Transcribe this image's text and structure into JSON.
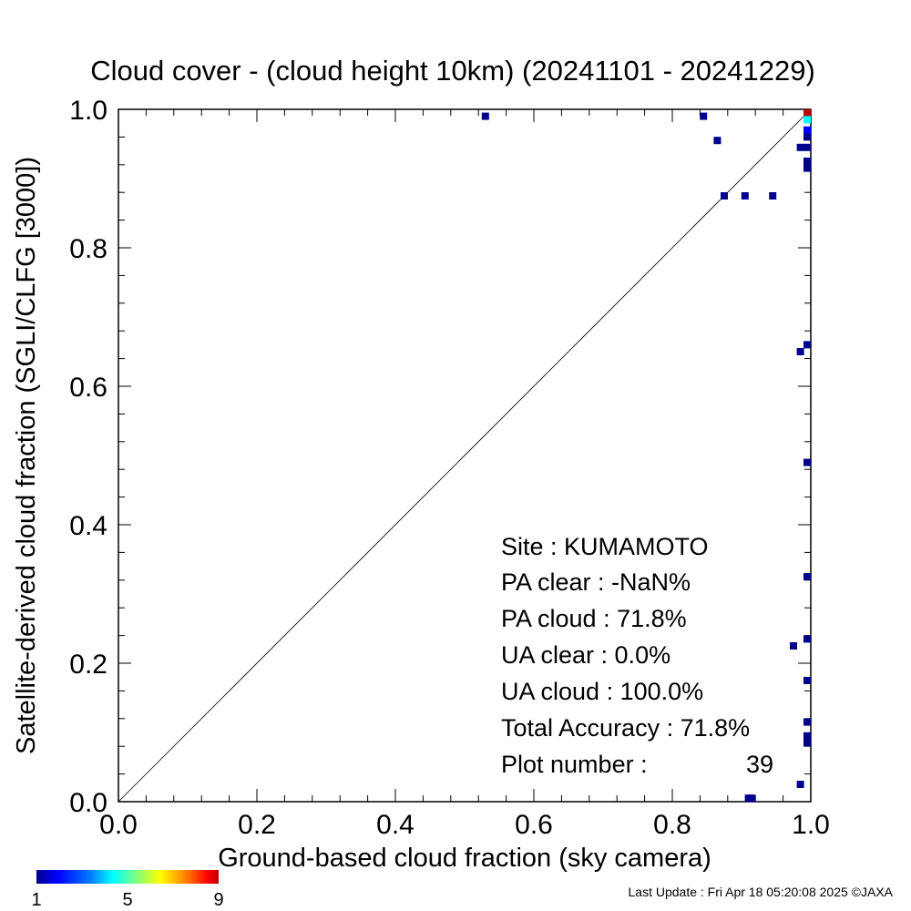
{
  "chart_data": {
    "type": "scatter",
    "title": "Cloud cover - (cloud height 10km)  (20241101 - 20241229)",
    "xlabel": "Ground-based cloud fraction (sky camera)",
    "ylabel": "Satellite-derived cloud fraction (SGLI/CLFG [3000])",
    "xlim": [
      0.0,
      1.0
    ],
    "ylim": [
      0.0,
      1.0
    ],
    "xticks": [
      "0.0",
      "0.2",
      "0.4",
      "0.6",
      "0.8",
      "1.0"
    ],
    "yticks": [
      "0.0",
      "0.2",
      "0.4",
      "0.6",
      "0.8",
      "1.0"
    ],
    "grid": false,
    "reference_line": "y = x",
    "points": [
      {
        "x": 0.53,
        "y": 0.99,
        "count": 1
      },
      {
        "x": 0.845,
        "y": 0.99,
        "count": 1
      },
      {
        "x": 0.865,
        "y": 0.955,
        "count": 1
      },
      {
        "x": 0.875,
        "y": 0.875,
        "count": 1
      },
      {
        "x": 0.905,
        "y": 0.875,
        "count": 1
      },
      {
        "x": 0.945,
        "y": 0.875,
        "count": 1
      },
      {
        "x": 0.985,
        "y": 0.945,
        "count": 1
      },
      {
        "x": 0.995,
        "y": 0.945,
        "count": 1
      },
      {
        "x": 0.995,
        "y": 1.0,
        "count": 9
      },
      {
        "x": 0.995,
        "y": 0.985,
        "count": 4
      },
      {
        "x": 0.995,
        "y": 0.97,
        "count": 2
      },
      {
        "x": 0.995,
        "y": 0.96,
        "count": 1
      },
      {
        "x": 0.995,
        "y": 0.925,
        "count": 1
      },
      {
        "x": 0.995,
        "y": 0.915,
        "count": 1
      },
      {
        "x": 0.985,
        "y": 0.65,
        "count": 1
      },
      {
        "x": 0.995,
        "y": 0.66,
        "count": 1
      },
      {
        "x": 0.995,
        "y": 0.49,
        "count": 1
      },
      {
        "x": 0.995,
        "y": 0.325,
        "count": 1
      },
      {
        "x": 0.995,
        "y": 0.235,
        "count": 1
      },
      {
        "x": 0.975,
        "y": 0.225,
        "count": 1
      },
      {
        "x": 0.995,
        "y": 0.175,
        "count": 1
      },
      {
        "x": 0.995,
        "y": 0.115,
        "count": 1
      },
      {
        "x": 0.995,
        "y": 0.095,
        "count": 1
      },
      {
        "x": 0.995,
        "y": 0.085,
        "count": 1
      },
      {
        "x": 0.985,
        "y": 0.025,
        "count": 1
      },
      {
        "x": 0.91,
        "y": 0.005,
        "count": 1
      },
      {
        "x": 0.915,
        "y": 0.005,
        "count": 1
      }
    ],
    "colorbar": {
      "min": 1,
      "max": 9,
      "tick_labels": [
        "1",
        "5",
        "9"
      ],
      "colors": [
        "#00008c",
        "#0000ff",
        "#0080ff",
        "#00ffff",
        "#80ff80",
        "#ffff00",
        "#ff8000",
        "#ff0000",
        "#c00000"
      ]
    }
  },
  "stats": {
    "site": "Site : KUMAMOTO",
    "pa_clear": "PA clear :  -NaN%",
    "pa_cloud": "PA cloud :  71.8%",
    "ua_clear": "UA clear :   0.0%",
    "ua_cloud": "UA cloud : 100.0%",
    "total_accuracy": "Total Accuracy :  71.8%",
    "plot_number_label": "Plot number :",
    "plot_number_value": "39"
  },
  "footer": "Last Update : Fri Apr 18 05:20:08 2025  ©JAXA"
}
